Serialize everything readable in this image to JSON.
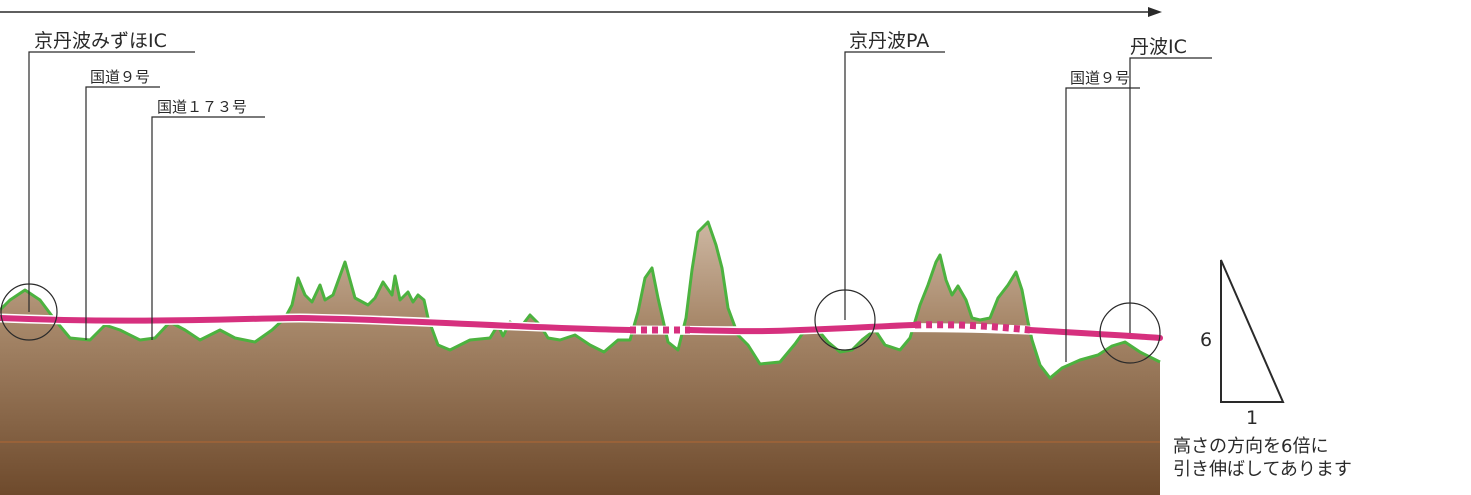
{
  "markers": [
    {
      "id": "kyotamba-mizuho-ic",
      "label": "京丹波みずほIC"
    },
    {
      "id": "route9-a",
      "label": "国道９号"
    },
    {
      "id": "route173",
      "label": "国道１７３号"
    },
    {
      "id": "kyotamba-pa",
      "label": "京丹波PA"
    },
    {
      "id": "tamba-ic",
      "label": "丹波IC"
    },
    {
      "id": "route9-b",
      "label": "国道９号"
    }
  ],
  "scale": {
    "vertical": "6",
    "horizontal": "1"
  },
  "note": {
    "line1": "高さの方向を6倍に",
    "line2": "引き伸ばしてあります"
  },
  "colors": {
    "ground_top": "#b89a82",
    "ground_bottom": "#6e4a2c",
    "terrain_outline": "#4cb23f",
    "road": "#d6307e",
    "marker_line": "#2a2a2a"
  }
}
